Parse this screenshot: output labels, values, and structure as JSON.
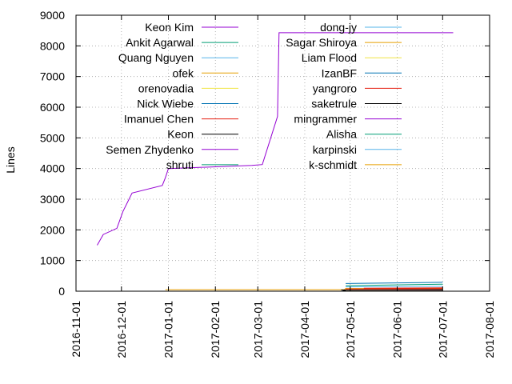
{
  "chart_data": {
    "type": "line",
    "title": "",
    "xlabel": "",
    "ylabel": "Lines",
    "ylim": [
      0,
      9000
    ],
    "xlim": [
      "2016-11-01",
      "2017-08-01"
    ],
    "y_ticks": [
      0,
      1000,
      2000,
      3000,
      4000,
      5000,
      6000,
      7000,
      8000,
      9000
    ],
    "x_ticks": [
      "2016-11-01",
      "2016-12-01",
      "2017-01-01",
      "2017-02-01",
      "2017-03-01",
      "2017-04-01",
      "2017-05-01",
      "2017-06-01",
      "2017-07-01",
      "2017-08-01"
    ],
    "grid": "dotted, both axes",
    "legend": "top-left, two columns",
    "series": [
      {
        "name": "Keon Kim",
        "color": "#9400d3",
        "points": [
          [
            "2016-11-15",
            1500
          ],
          [
            "2016-11-19",
            1850
          ],
          [
            "2016-11-28",
            2050
          ],
          [
            "2016-12-02",
            2600
          ],
          [
            "2016-12-08",
            3200
          ],
          [
            "2016-12-28",
            3450
          ],
          [
            "2016-12-30",
            3700
          ],
          [
            "2017-01-01",
            4000
          ],
          [
            "2017-02-25",
            4100
          ],
          [
            "2017-03-04",
            4130
          ],
          [
            "2017-03-14",
            5700
          ],
          [
            "2017-03-15",
            8430
          ],
          [
            "2017-07-08",
            8430
          ]
        ]
      },
      {
        "name": "Ankit Agarwal",
        "color": "#009e73",
        "points": [
          [
            "2017-04-28",
            180
          ],
          [
            "2017-07-01",
            230
          ]
        ]
      },
      {
        "name": "Quang Nguyen",
        "color": "#56b4e9",
        "points": [
          [
            "2017-04-28",
            140
          ],
          [
            "2017-07-01",
            160
          ]
        ]
      },
      {
        "name": "ofek",
        "color": "#e69f00",
        "points": [
          [
            "2016-12-30",
            50
          ],
          [
            "2017-04-27",
            50
          ],
          [
            "2017-04-28",
            90
          ],
          [
            "2017-07-01",
            95
          ]
        ]
      },
      {
        "name": "orenovadia",
        "color": "#f0e442",
        "points": [
          [
            "2017-04-28",
            60
          ],
          [
            "2017-07-01",
            70
          ]
        ]
      },
      {
        "name": "Nick Wiebe",
        "color": "#0072b2",
        "points": [
          [
            "2017-04-28",
            250
          ],
          [
            "2017-07-01",
            290
          ]
        ]
      },
      {
        "name": "Imanuel Chen",
        "color": "#e51e10",
        "points": [
          [
            "2017-04-28",
            70
          ],
          [
            "2017-07-01",
            80
          ]
        ]
      },
      {
        "name": "Keon",
        "color": "#000000",
        "points": [
          [
            "2017-04-25",
            40
          ],
          [
            "2017-07-01",
            50
          ]
        ]
      },
      {
        "name": "Semen Zhydenko",
        "color": "#9400d3",
        "points": [
          [
            "2017-04-28",
            30
          ],
          [
            "2017-07-01",
            35
          ]
        ]
      },
      {
        "name": "shruti",
        "color": "#009e73",
        "points": [
          [
            "2017-04-28",
            20
          ],
          [
            "2017-07-01",
            25
          ]
        ]
      },
      {
        "name": "dong-jy",
        "color": "#56b4e9",
        "points": [
          [
            "2017-04-28",
            20
          ],
          [
            "2017-07-01",
            20
          ]
        ]
      },
      {
        "name": "Sagar Shiroya",
        "color": "#e69f00",
        "points": [
          [
            "2017-04-28",
            15
          ],
          [
            "2017-07-01",
            15
          ]
        ]
      },
      {
        "name": "Liam Flood",
        "color": "#f0e442",
        "points": [
          [
            "2017-04-28",
            12
          ],
          [
            "2017-07-01",
            12
          ]
        ]
      },
      {
        "name": "IzanBF",
        "color": "#0072b2",
        "points": [
          [
            "2017-04-28",
            10
          ],
          [
            "2017-07-01",
            10
          ]
        ]
      },
      {
        "name": "yangroro",
        "color": "#e51e10",
        "points": [
          [
            "2017-05-10",
            100
          ],
          [
            "2017-07-01",
            110
          ]
        ]
      },
      {
        "name": "saketrule",
        "color": "#000000",
        "points": [
          [
            "2017-04-26",
            20
          ],
          [
            "2017-07-01",
            25
          ]
        ]
      },
      {
        "name": "mingrammer",
        "color": "#9400d3",
        "points": [
          [
            "2017-04-28",
            8
          ],
          [
            "2017-07-01",
            8
          ]
        ]
      },
      {
        "name": "Alisha",
        "color": "#009e73",
        "points": [
          [
            "2017-04-28",
            6
          ],
          [
            "2017-07-01",
            6
          ]
        ]
      },
      {
        "name": "karpinski",
        "color": "#56b4e9",
        "points": [
          [
            "2017-04-28",
            5
          ],
          [
            "2017-07-01",
            5
          ]
        ]
      },
      {
        "name": "k-schmidt",
        "color": "#e69f00",
        "points": [
          [
            "2017-04-28",
            4
          ],
          [
            "2017-07-01",
            4
          ]
        ]
      }
    ]
  }
}
